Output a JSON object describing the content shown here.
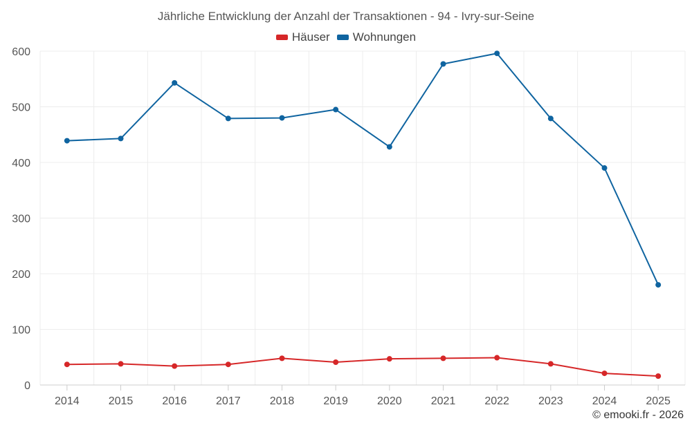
{
  "chart_data": {
    "type": "line",
    "title": "Jährliche Entwicklung der Anzahl der Transaktionen - 94 - Ivry-sur-Seine",
    "categories": [
      "2014",
      "2015",
      "2016",
      "2017",
      "2018",
      "2019",
      "2020",
      "2021",
      "2022",
      "2023",
      "2024",
      "2025"
    ],
    "series": [
      {
        "name": "Häuser",
        "color": "#d62728",
        "values": [
          37,
          38,
          34,
          37,
          48,
          41,
          47,
          48,
          49,
          38,
          21,
          16
        ]
      },
      {
        "name": "Wohnungen",
        "color": "#0f64a0",
        "values": [
          439,
          443,
          543,
          479,
          480,
          495,
          428,
          577,
          596,
          479,
          390,
          180
        ]
      }
    ],
    "ylim": [
      0,
      600
    ],
    "yticks": [
      "0",
      "100",
      "200",
      "300",
      "400",
      "500",
      "600"
    ],
    "xlabel": "",
    "ylabel": "",
    "grid": true,
    "legend_position": "top-center"
  },
  "credit": "© emooki.fr - 2026"
}
